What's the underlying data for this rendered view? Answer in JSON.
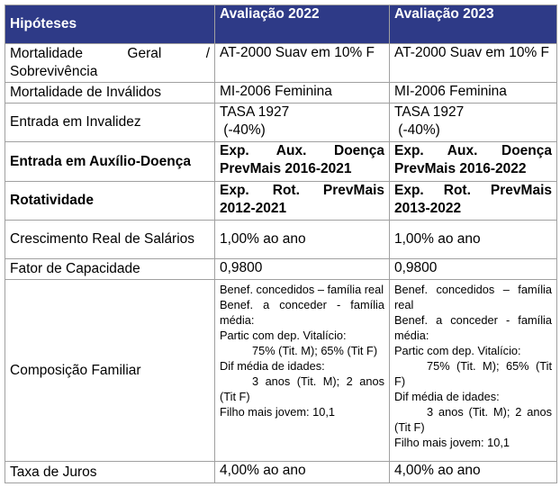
{
  "header": {
    "col1": "Hipóteses",
    "col2": "Avaliação 2022",
    "col3": "Avaliação 2023"
  },
  "rows": [
    {
      "label": "Mortalidade Geral / Sobrevivência",
      "v2022": "AT-2000 Suav em 10% F",
      "v2023": "AT-2000 Suav em 10% F"
    },
    {
      "label": "Mortalidade de Inválidos",
      "v2022": "MI-2006 Feminina",
      "v2023": "MI-2006 Feminina"
    },
    {
      "label": "Entrada em Invalidez",
      "v2022_l1": "TASA 1927",
      "v2022_l2": " (-40%)",
      "v2023_l1": "TASA 1927",
      "v2023_l2": " (-40%)"
    },
    {
      "label": "Entrada em Auxílio-Doença",
      "v2022": "Exp. Aux. Doença PrevMais 2016-2021",
      "v2023": "Exp. Aux. Doença PrevMais 2016-2022"
    },
    {
      "label": "Rotatividade",
      "v2022": "Exp. Rot. PrevMais 2012-2021",
      "v2023": "Exp. Rot. PrevMais 2013-2022"
    },
    {
      "label": "Crescimento Real de Salários",
      "v2022": "1,00% ao ano",
      "v2023": "1,00% ao ano"
    },
    {
      "label": "Fator de Capacidade",
      "v2022": "0,9800",
      "v2023": "0,9800"
    },
    {
      "label": "Composição Familiar",
      "v2022": [
        "Benef. concedidos – família real",
        "Benef. a conceder - família média:",
        "Partic com dep. Vitalício:",
        "75% (Tit. M); 65% (Tit F)",
        "Dif média de idades:",
        "3 anos (Tit. M); 2 anos (Tit F)",
        "Filho mais jovem: 10,1"
      ],
      "v2023": [
        "Benef. concedidos – família real",
        "Benef. a conceder - família média:",
        "Partic com dep. Vitalício:",
        "75% (Tit. M); 65% (Tit F)",
        "Dif média de idades:",
        "3 anos (Tit. M); 2 anos (Tit F)",
        "Filho mais jovem: 10,1"
      ]
    },
    {
      "label": "Taxa de Juros",
      "v2022": "4,00% ao ano",
      "v2023": "4,00% ao ano"
    }
  ],
  "colors": {
    "header_bg": "#2e3a87",
    "header_text": "#ffffff",
    "border": "#a0a0a0"
  }
}
